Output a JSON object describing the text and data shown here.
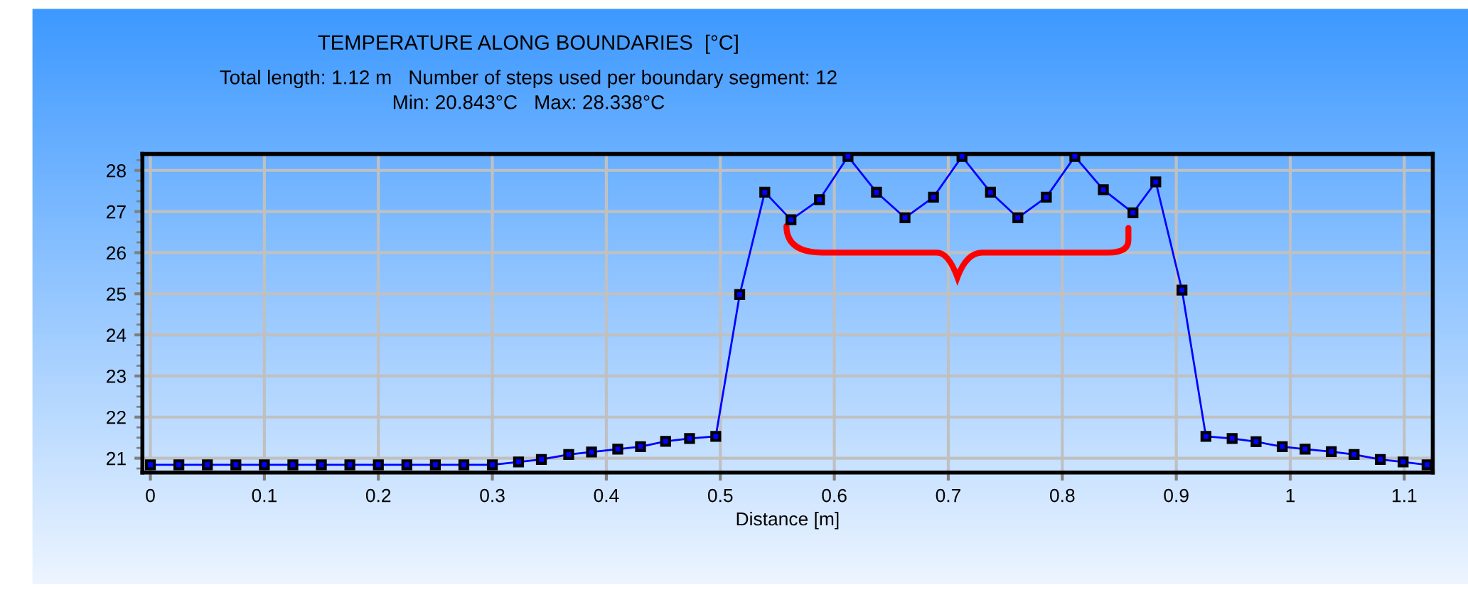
{
  "chart_data": {
    "type": "line",
    "title": "TEMPERATURE ALONG BOUNDARIES  [°C]",
    "subtitle": "Total length: 1.12 m   Number of steps used per boundary segment: 12\nMin: 20.843°C   Max: 28.338°C",
    "xlabel": "Distance [m]",
    "x": [
      0,
      0.025,
      0.05,
      0.075,
      0.1,
      0.125,
      0.15,
      0.175,
      0.2,
      0.225,
      0.25,
      0.275,
      0.3,
      0.323,
      0.343,
      0.367,
      0.387,
      0.41,
      0.43,
      0.452,
      0.473,
      0.496,
      0.517,
      0.539,
      0.562,
      0.587,
      0.612,
      0.637,
      0.662,
      0.687,
      0.712,
      0.737,
      0.761,
      0.786,
      0.811,
      0.836,
      0.862,
      0.882,
      0.905,
      0.926,
      0.949,
      0.97,
      0.993,
      1.013,
      1.036,
      1.056,
      1.079,
      1.099,
      1.12
    ],
    "series": [
      {
        "color": "#0000ff",
        "values": [
          20.84,
          20.84,
          20.84,
          20.84,
          20.84,
          20.84,
          20.84,
          20.84,
          20.84,
          20.84,
          20.84,
          20.84,
          20.84,
          20.91,
          20.97,
          21.09,
          21.15,
          21.22,
          21.28,
          21.41,
          21.48,
          21.53,
          24.98,
          27.47,
          26.8,
          27.29,
          28.34,
          27.47,
          26.85,
          27.35,
          28.34,
          27.47,
          26.85,
          27.35,
          28.34,
          27.53,
          26.97,
          27.72,
          25.09,
          21.53,
          21.48,
          21.4,
          21.28,
          21.22,
          21.16,
          21.09,
          20.97,
          20.91,
          20.84
        ]
      }
    ],
    "xlim": [
      -0.007,
      1.125
    ],
    "ylim": [
      20.65,
      28.4
    ],
    "xticks": [
      0,
      0.1,
      0.2,
      0.3,
      0.4,
      0.5,
      0.6,
      0.7,
      0.8,
      0.9,
      1,
      1.1
    ],
    "yticks": [
      21,
      22,
      23,
      24,
      25,
      26,
      27,
      28
    ],
    "grid": true,
    "legend": false,
    "marker": "square",
    "line_style": "solid"
  }
}
